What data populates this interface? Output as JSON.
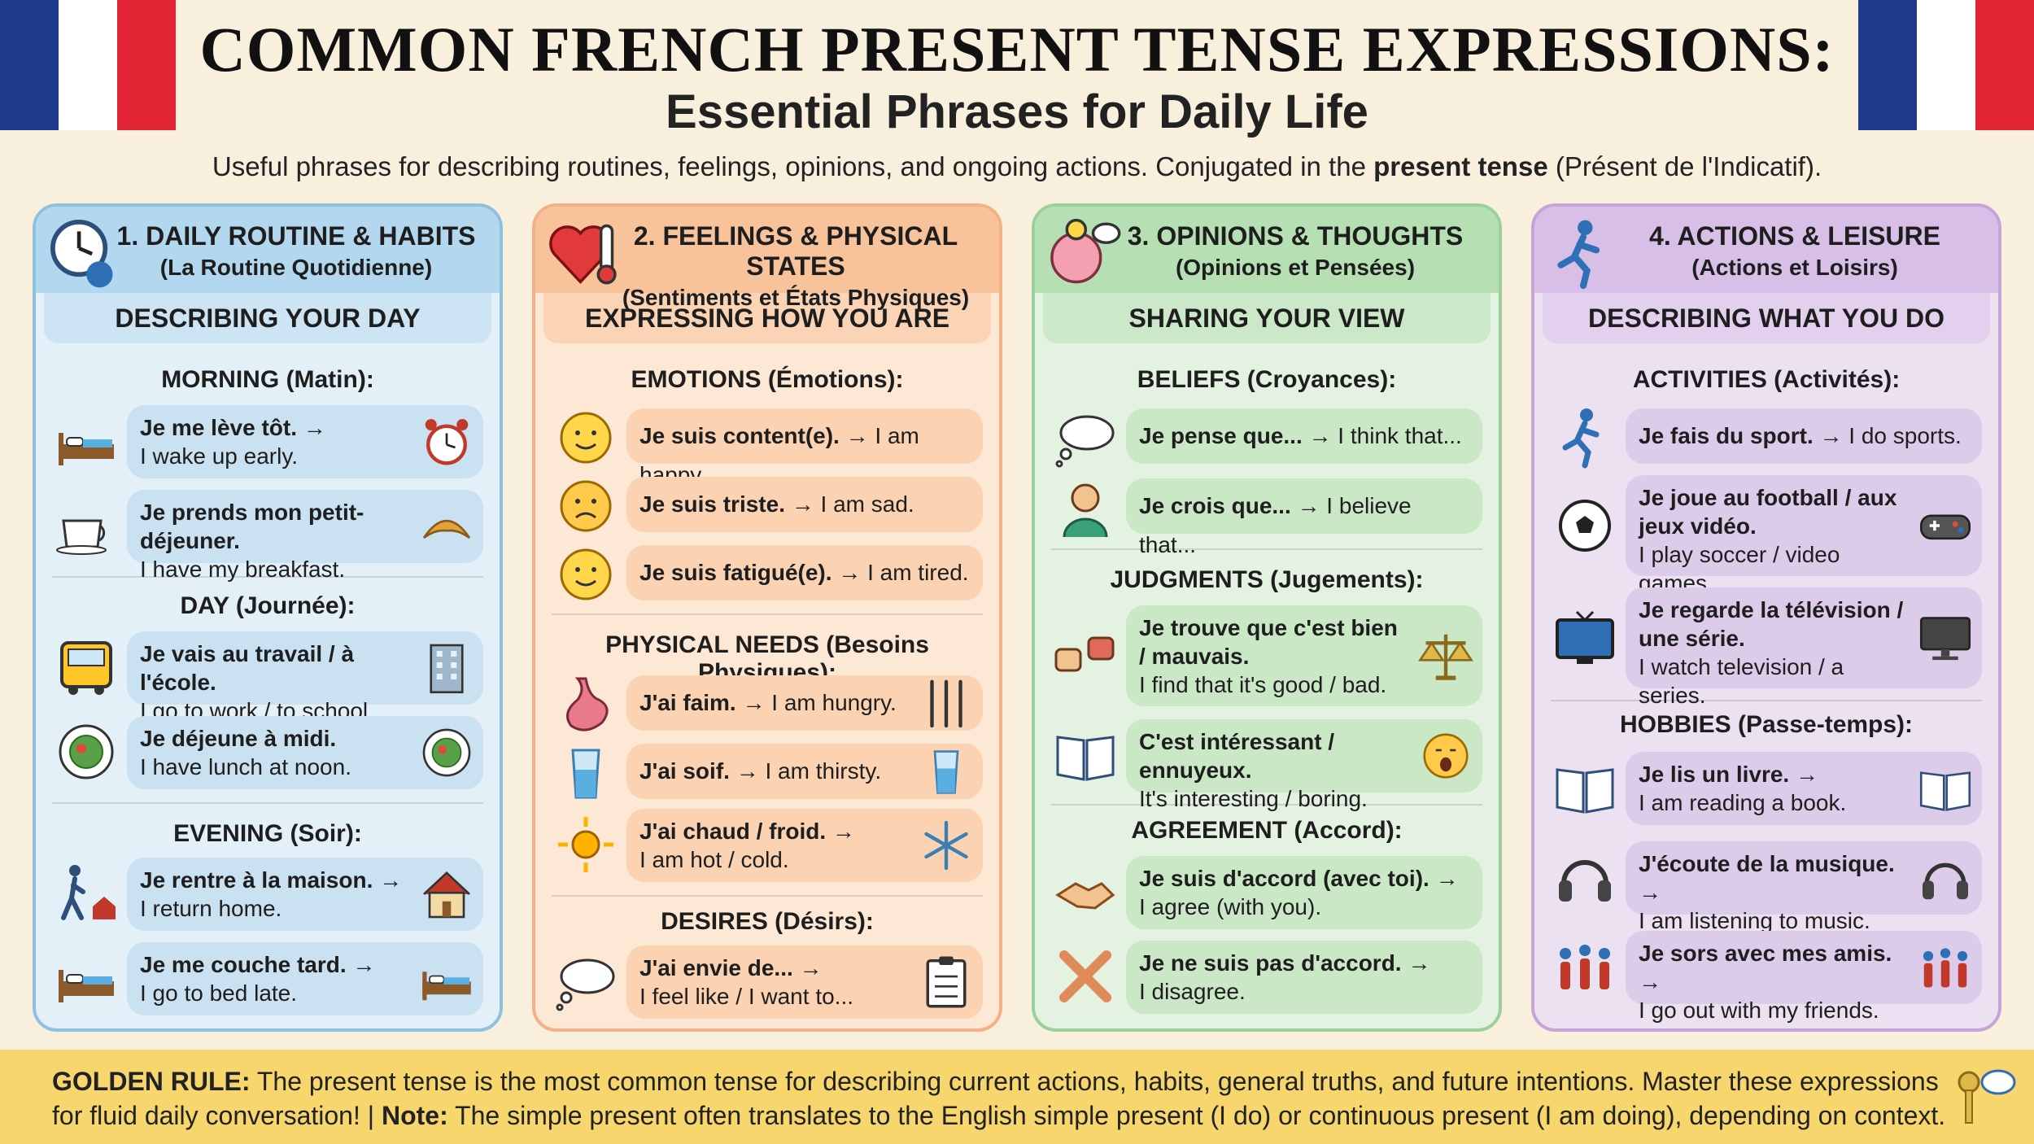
{
  "header": {
    "title": "COMMON FRENCH PRESENT TENSE EXPRESSIONS:",
    "subtitle": "Essential Phrases for Daily Life",
    "intro_pre": "Useful phrases for describing routines, feelings, opinions, and ongoing actions. Conjugated in the ",
    "intro_bold": "present tense",
    "intro_post": " (Présent de l'Indicatif)."
  },
  "colors": {
    "flag_blue": "#1e3a8a",
    "flag_red": "#e02434",
    "footer": "#f6d66d"
  },
  "panels": [
    {
      "title": "1. DAILY ROUTINE & HABITS",
      "subtitle": "(La Routine Quotidienne)",
      "header_icon": "clock-person-icon",
      "band": "DESCRIBING YOUR DAY",
      "sections": [
        {
          "heading": "MORNING (Matin):",
          "items": [
            {
              "fr": "Je me lève tôt. →",
              "en": "I wake up early.",
              "left_icon": "waking-bed-icon",
              "right_icon": "alarm-clock-icon"
            },
            {
              "fr": "Je prends mon petit-déjeuner.",
              "en": "I have my breakfast.",
              "left_icon": "coffee-cup-icon",
              "right_icon": "croissant-icon"
            }
          ]
        },
        {
          "heading": "DAY (Journée):",
          "items": [
            {
              "fr": "Je vais au travail / à l'école.",
              "en": "I go to work / to school.",
              "left_icon": "bus-icon",
              "right_icon": "building-icon"
            },
            {
              "fr": "Je déjeune à midi.",
              "en": "I have lunch at noon.",
              "left_icon": "plate-icon",
              "right_icon": "salad-icon"
            }
          ]
        },
        {
          "heading": "EVENING (Soir):",
          "items": [
            {
              "fr": "Je rentre à la maison. →",
              "en": "I return home.",
              "left_icon": "walking-home-icon",
              "right_icon": "house-icon"
            },
            {
              "fr": "Je me couche tard. →",
              "en": "I go to bed late.",
              "left_icon": "bed-moon-icon",
              "right_icon": "bed-moon-icon"
            }
          ]
        }
      ]
    },
    {
      "title": "2. FEELINGS & PHYSICAL STATES",
      "subtitle": "(Sentiments et États Physiques)",
      "header_icon": "heart-thermometer-icon",
      "band": "EXPRESSING HOW YOU ARE",
      "sections": [
        {
          "heading": "EMOTIONS (Émotions):",
          "items": [
            {
              "fr": "Je suis content(e).",
              "en": "→ I am happy.",
              "left_icon": "happy-face-icon"
            },
            {
              "fr": "Je suis triste.",
              "en": "→ I am sad.",
              "left_icon": "sad-face-icon"
            },
            {
              "fr": "Je suis fatigué(e).",
              "en": "→ I am tired.",
              "left_icon": "tired-face-icon"
            }
          ]
        },
        {
          "heading": "PHYSICAL NEEDS (Besoins Physiques):",
          "items": [
            {
              "fr": "J'ai faim.",
              "en": "→ I am hungry.",
              "left_icon": "stomach-icon",
              "right_icon": "cutlery-icon"
            },
            {
              "fr": "J'ai soif.",
              "en": "→ I am thirsty.",
              "left_icon": "water-glass-icon",
              "right_icon": "water-glass-icon"
            },
            {
              "fr": "J'ai chaud / froid. →",
              "en": "I am hot / cold.",
              "left_icon": "sun-icon",
              "right_icon": "snowflake-icon"
            }
          ]
        },
        {
          "heading": "DESIRES (Désirs):",
          "items": [
            {
              "fr": "J'ai envie de... →",
              "en": "I feel like / I want to...",
              "left_icon": "thought-bubble-icon",
              "right_icon": "clipboard-icon"
            }
          ]
        }
      ]
    },
    {
      "title": "3. OPINIONS & THOUGHTS",
      "subtitle": "(Opinions et Pensées)",
      "header_icon": "brain-bulb-icon",
      "band": "SHARING YOUR VIEW",
      "sections": [
        {
          "heading": "BELIEFS (Croyances):",
          "items": [
            {
              "fr": "Je pense que...",
              "en": "→ I think that...",
              "left_icon": "thought-bubble-icon"
            },
            {
              "fr": "Je crois que...",
              "en": "→ I believe that...",
              "left_icon": "person-icon"
            }
          ]
        },
        {
          "heading": "JUDGMENTS (Jugements):",
          "items": [
            {
              "fr": "Je trouve que c'est bien / mauvais.",
              "en": "I find that it's good / bad.",
              "left_icon": "thumbs-up-down-icon",
              "right_icon": "scales-icon"
            },
            {
              "fr": "C'est intéressant / ennuyeux.",
              "en": "It's interesting / boring.",
              "left_icon": "open-book-icon",
              "right_icon": "yawning-face-icon"
            }
          ]
        },
        {
          "heading": "AGREEMENT (Accord):",
          "items": [
            {
              "fr": "Je suis d'accord (avec toi). →",
              "en": "I agree (with you).",
              "left_icon": "handshake-icon"
            },
            {
              "fr": "Je ne suis pas d'accord. →",
              "en": "I disagree.",
              "left_icon": "crossed-arms-icon"
            }
          ]
        }
      ]
    },
    {
      "title": "4. ACTIONS & LEISURE",
      "subtitle": "(Actions et Loisirs)",
      "header_icon": "runner-remote-icon",
      "band": "DESCRIBING WHAT YOU DO",
      "sections": [
        {
          "heading": "ACTIVITIES (Activités):",
          "items": [
            {
              "fr": "Je fais du sport.",
              "en": "→ I do sports.",
              "left_icon": "runner-icon"
            },
            {
              "fr": "Je joue au football / aux jeux vidéo.",
              "en": "I play soccer / video games.",
              "left_icon": "soccer-ball-icon",
              "right_icon": "gamepad-icon"
            },
            {
              "fr": "Je regarde la télévision / une série.",
              "en": "I watch television / a series.",
              "left_icon": "tv-icon",
              "right_icon": "monitor-icon"
            }
          ]
        },
        {
          "heading": "HOBBIES (Passe-temps):",
          "items": [
            {
              "fr": "Je lis un livre. →",
              "en": "I am reading a book.",
              "left_icon": "open-book-icon",
              "right_icon": "open-book-icon"
            },
            {
              "fr": "J'écoute de la musique. →",
              "en": "I am listening to music.",
              "left_icon": "headphones-icon",
              "right_icon": "headphones-icon"
            },
            {
              "fr": "Je sors avec mes amis. →",
              "en": "I go out with my friends.",
              "left_icon": "group-of-friends-icon",
              "right_icon": "group-of-friends-icon"
            }
          ]
        }
      ]
    }
  ],
  "footer": {
    "rule_label": "GOLDEN RULE:",
    "rule_text": " The present tense is the most common tense for describing current actions, habits, general truths, and future intentions. Master these expressions for fluid daily conversation! | ",
    "note_label": "Note:",
    "note_text": " The simple present often translates to the English simple present (I do) or continuous present (I am doing), depending on context.",
    "icon": "key-speech-bubble-icon"
  }
}
